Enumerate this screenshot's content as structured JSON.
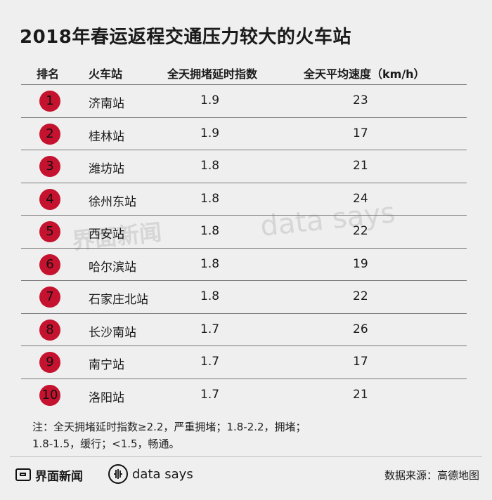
{
  "title": "2018年春运返程交通压力较大的火车站",
  "columns": {
    "rank": "排名",
    "station": "火车站",
    "congestion": "全天拥堵延时指数",
    "speed": "全天平均速度（km/h）"
  },
  "chart_data": {
    "type": "table",
    "rows": [
      {
        "rank": "1",
        "station": "济南站",
        "congestion": "1.9",
        "speed": "23"
      },
      {
        "rank": "2",
        "station": "桂林站",
        "congestion": "1.9",
        "speed": "17"
      },
      {
        "rank": "3",
        "station": "潍坊站",
        "congestion": "1.8",
        "speed": "21"
      },
      {
        "rank": "4",
        "station": "徐州东站",
        "congestion": "1.8",
        "speed": "24"
      },
      {
        "rank": "5",
        "station": "西安站",
        "congestion": "1.8",
        "speed": "22"
      },
      {
        "rank": "6",
        "station": "哈尔滨站",
        "congestion": "1.8",
        "speed": "19"
      },
      {
        "rank": "7",
        "station": "石家庄北站",
        "congestion": "1.8",
        "speed": "22"
      },
      {
        "rank": "8",
        "station": "长沙南站",
        "congestion": "1.7",
        "speed": "26"
      },
      {
        "rank": "9",
        "station": "南宁站",
        "congestion": "1.7",
        "speed": "17"
      },
      {
        "rank": "10",
        "station": "洛阳站",
        "congestion": "1.7",
        "speed": "21"
      }
    ]
  },
  "note_line1": "注：全天拥堵延时指数≥2.2，严重拥堵；1.8-2.2，拥堵；",
  "note_line2": "1.8-1.5，缓行；<1.5，畅通。",
  "footer": {
    "brand": "界面新闻",
    "datasays": "data says",
    "source": "数据来源：高德地图"
  },
  "accent_color": "#c4122f"
}
